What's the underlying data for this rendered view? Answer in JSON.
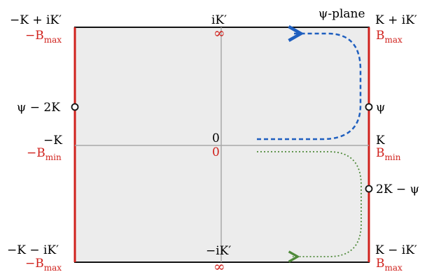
{
  "plane_label": "ψ-plane",
  "corners": {
    "top_left": {
      "label": "−K + iK′",
      "value_red": "−B",
      "value_sub": "max"
    },
    "top_right": {
      "label": "K + iK′",
      "value_red": "B",
      "value_sub": "max"
    },
    "bottom_left": {
      "label": "−K − iK′",
      "value_red": "−B",
      "value_sub": "max"
    },
    "bottom_right": {
      "label": "K − iK′",
      "value_red": "B",
      "value_sub": "max"
    }
  },
  "midpoints": {
    "left": {
      "label": "−K",
      "value_red": "−B",
      "value_sub": "min"
    },
    "right": {
      "label": "K",
      "value_red": "B",
      "value_sub": "min"
    },
    "top": {
      "label": "iK′",
      "value_red": "∞"
    },
    "bottom": {
      "label": "−iK′",
      "value_red": "∞"
    },
    "origin": {
      "label": "0",
      "value_red": "0"
    }
  },
  "points": {
    "left_point": "ψ − 2K",
    "right_point": "ψ",
    "right_lower_point": "2K − ψ"
  },
  "colors": {
    "red": "#d0211c",
    "blue": "#1f5fbf",
    "green": "#4f8a3a",
    "fill": "#ececec"
  }
}
